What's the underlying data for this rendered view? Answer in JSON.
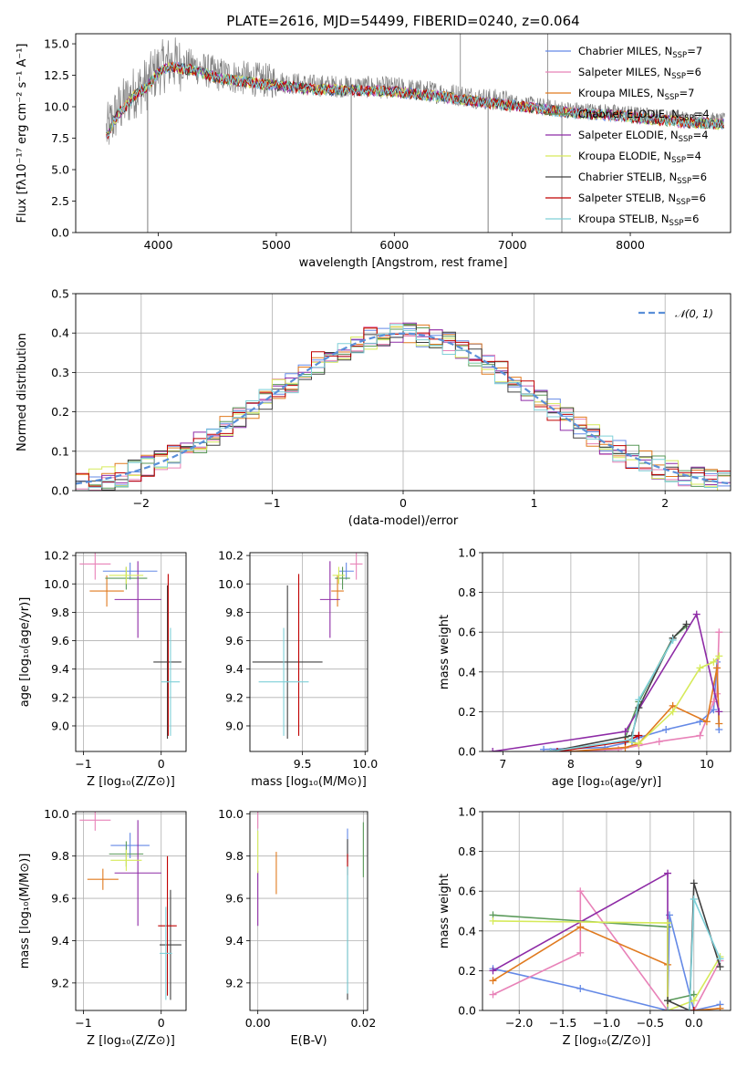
{
  "colors": {
    "Chabrier MILES": "#6489e6",
    "Salpeter MILES": "#e882b8",
    "Kroupa MILES": "#e07a1f",
    "Chabrier ELODIE": "#5a9a5a",
    "Salpeter ELODIE": "#8e2ba6",
    "Kroupa ELODIE": "#d6ea5a",
    "Chabrier STELIB": "#404040",
    "Salpeter STELIB": "#c00000",
    "Kroupa STELIB": "#7fd0d8",
    "observed": "#808080",
    "gauss": "#5a8fd8",
    "grid": "#b0b0b0"
  },
  "chart_data": [
    {
      "id": "spectrum",
      "type": "line",
      "title": "PLATE=2616, MJD=54499, FIBERID=0240, z=0.064",
      "xlabel": "wavelength [Angstrom, rest frame]",
      "ylabel": "Flux [fλ10⁻¹⁷ erg cm⁻² s⁻¹ A⁻¹]",
      "xlim": [
        3300,
        8850
      ],
      "ylim": [
        0,
        15.8
      ],
      "xticks": [
        4000,
        5000,
        6000,
        7000,
        8000
      ],
      "yticks": [
        0.0,
        2.5,
        5.0,
        7.5,
        10.0,
        12.5,
        15.0
      ],
      "legend_position": "top-right",
      "legend": [
        {
          "name": "Chabrier MILES",
          "sub": "SSP",
          "n": "=7"
        },
        {
          "name": "Salpeter MILES",
          "sub": "SSP",
          "n": "=6"
        },
        {
          "name": "Kroupa MILES",
          "sub": "SSP",
          "n": "=7"
        },
        {
          "name": "Chabrier ELODIE",
          "sub": "SSP",
          "n": "=4"
        },
        {
          "name": "Salpeter ELODIE",
          "sub": "SSP",
          "n": "=4"
        },
        {
          "name": "Kroupa ELODIE",
          "sub": "SSP",
          "n": "=4"
        },
        {
          "name": "Chabrier STELIB",
          "sub": "SSP",
          "n": "=6"
        },
        {
          "name": "Salpeter STELIB",
          "sub": "SSP",
          "n": "=6"
        },
        {
          "name": "Kroupa STELIB",
          "sub": "SSP",
          "n": "=6"
        }
      ],
      "envelope": {
        "x": [
          3560,
          3650,
          3800,
          3900,
          4000,
          4100,
          4300,
          4500,
          4700,
          5000,
          5300,
          5600,
          6000,
          6400,
          6800,
          7100,
          7400,
          7700,
          8000,
          8400,
          8800
        ],
        "y": [
          8.0,
          9.6,
          11.2,
          11.8,
          13.0,
          13.5,
          13.2,
          12.6,
          12.3,
          12.0,
          11.7,
          11.6,
          11.5,
          11.1,
          10.6,
          10.3,
          9.9,
          9.7,
          9.5,
          9.1,
          8.9
        ]
      },
      "absorption_dips": [
        {
          "x": 3910,
          "y": 0.0
        },
        {
          "x": 5635,
          "y": 0.0
        },
        {
          "x": 6795,
          "y": 0.0
        },
        {
          "x": 7420,
          "y": 0.0
        }
      ],
      "spikes": [
        {
          "x": 6560,
          "y": 15.8
        },
        {
          "x": 7300,
          "y": 15.8
        }
      ]
    },
    {
      "id": "residuals",
      "type": "bar",
      "xlabel": "(data-model)/error",
      "ylabel": "Normed distribution",
      "xlim": [
        -2.5,
        2.5
      ],
      "ylim": [
        0,
        0.5
      ],
      "xticks": [
        -2,
        -1,
        0,
        1,
        2
      ],
      "yticks": [
        0.0,
        0.1,
        0.2,
        0.3,
        0.4,
        0.5
      ],
      "grid": true,
      "legend_position": "top-right",
      "legend": [
        {
          "name": "𝒩(0, 1)"
        }
      ],
      "bin_width": 0.1,
      "bin_start": -2.5
    },
    {
      "id": "age-vs-Z",
      "type": "scatter",
      "xlabel": "Z [log₁₀(Z/Z⊙)]",
      "ylabel": "age  [log₁₀(age/yr)]",
      "xlim": [
        -1.1,
        0.32
      ],
      "ylim": [
        8.82,
        10.22
      ],
      "xticks": [
        -1,
        0
      ],
      "yticks": [
        9.0,
        9.2,
        9.4,
        9.6,
        9.8,
        10.0,
        10.2
      ],
      "grid": true,
      "points": [
        {
          "m": "Chabrier MILES",
          "x": -0.4,
          "y": 10.09,
          "xerr": 0.35,
          "yerr": 0.06
        },
        {
          "m": "Salpeter MILES",
          "x": -0.85,
          "y": 10.14,
          "xerr": 0.2,
          "yerr": 0.11
        },
        {
          "m": "Kroupa MILES",
          "x": -0.7,
          "y": 9.95,
          "xerr": 0.22,
          "yerr": 0.11
        },
        {
          "m": "Chabrier ELODIE",
          "x": -0.45,
          "y": 10.04,
          "xerr": 0.27,
          "yerr": 0.08
        },
        {
          "m": "Salpeter ELODIE",
          "x": -0.3,
          "y": 9.89,
          "xerr": 0.3,
          "yerr": 0.27
        },
        {
          "m": "Kroupa ELODIE",
          "x": -0.45,
          "y": 10.06,
          "xerr": 0.22,
          "yerr": 0.06
        },
        {
          "m": "Chabrier STELIB",
          "x": 0.08,
          "y": 9.45,
          "xerr": 0.18,
          "yerr": 0.54
        },
        {
          "m": "Salpeter STELIB",
          "x": 0.09,
          "y": 9.5,
          "xerr": 0.0,
          "yerr": 0.57
        },
        {
          "m": "Kroupa STELIB",
          "x": 0.12,
          "y": 9.31,
          "xerr": 0.12,
          "yerr": 0.38
        }
      ]
    },
    {
      "id": "age-vs-mass",
      "type": "scatter",
      "xlabel": "mass [log₁₀(M/M⊙)]",
      "ylabel": "",
      "xlim": [
        9.08,
        10.02
      ],
      "ylim": [
        8.82,
        10.22
      ],
      "xticks": [
        9.5,
        10.0
      ],
      "yticks": [
        9.0,
        9.2,
        9.4,
        9.6,
        9.8,
        10.0,
        10.2
      ],
      "grid": true,
      "points": [
        {
          "m": "Chabrier MILES",
          "x": 9.85,
          "y": 10.09,
          "xerr": 0.06,
          "yerr": 0.06
        },
        {
          "m": "Salpeter MILES",
          "x": 9.93,
          "y": 10.14,
          "xerr": 0.05,
          "yerr": 0.11
        },
        {
          "m": "Kroupa MILES",
          "x": 9.78,
          "y": 9.95,
          "xerr": 0.05,
          "yerr": 0.11
        },
        {
          "m": "Chabrier ELODIE",
          "x": 9.82,
          "y": 10.04,
          "xerr": 0.06,
          "yerr": 0.08
        },
        {
          "m": "Salpeter ELODIE",
          "x": 9.72,
          "y": 9.89,
          "xerr": 0.08,
          "yerr": 0.27
        },
        {
          "m": "Kroupa ELODIE",
          "x": 9.79,
          "y": 10.06,
          "xerr": 0.05,
          "yerr": 0.06
        },
        {
          "m": "Chabrier STELIB",
          "x": 9.38,
          "y": 9.45,
          "xerr": 0.28,
          "yerr": 0.54
        },
        {
          "m": "Salpeter STELIB",
          "x": 9.47,
          "y": 9.5,
          "xerr": 0.0,
          "yerr": 0.57
        },
        {
          "m": "Kroupa STELIB",
          "x": 9.35,
          "y": 9.31,
          "xerr": 0.2,
          "yerr": 0.38
        }
      ]
    },
    {
      "id": "weight-vs-age",
      "type": "line",
      "xlabel": "age  [log₁₀(age/yr)]",
      "ylabel": "mass weight",
      "xlim": [
        6.7,
        10.35
      ],
      "ylim": [
        0,
        1.0
      ],
      "xticks": [
        7,
        8,
        9,
        10
      ],
      "yticks": [
        0.0,
        0.2,
        0.4,
        0.6,
        0.8,
        1.0
      ],
      "grid": true,
      "series": [
        {
          "m": "Chabrier MILES",
          "x": [
            7.6,
            8.5,
            8.9,
            9.0,
            9.4,
            9.9,
            10.1,
            10.15,
            10.18
          ],
          "y": [
            0.01,
            0.02,
            0.05,
            0.07,
            0.11,
            0.15,
            0.21,
            0.45,
            0.11
          ]
        },
        {
          "m": "Salpeter MILES",
          "x": [
            7.9,
            8.7,
            9.0,
            9.3,
            9.9,
            10.1,
            10.15,
            10.18
          ],
          "y": [
            0.0,
            0.01,
            0.03,
            0.05,
            0.08,
            0.25,
            0.29,
            0.6
          ]
        },
        {
          "m": "Kroupa MILES",
          "x": [
            8.0,
            8.8,
            9.0,
            9.5,
            10.0,
            10.15,
            10.18
          ],
          "y": [
            0.0,
            0.02,
            0.04,
            0.23,
            0.15,
            0.42,
            0.14
          ]
        },
        {
          "m": "Chabrier ELODIE",
          "x": [
            8.8,
            9.0,
            9.5,
            9.7
          ],
          "y": [
            0.07,
            0.25,
            0.57,
            0.63
          ]
        },
        {
          "m": "Salpeter ELODIE",
          "x": [
            6.85,
            8.8,
            9.85,
            10.18
          ],
          "y": [
            0.0,
            0.1,
            0.69,
            0.2
          ]
        },
        {
          "m": "Kroupa ELODIE",
          "x": [
            8.8,
            9.0,
            9.5,
            9.9,
            10.1,
            10.18
          ],
          "y": [
            0.05,
            0.04,
            0.2,
            0.42,
            0.45,
            0.48
          ]
        },
        {
          "m": "Chabrier STELIB",
          "x": [
            7.7,
            8.9,
            9.0,
            9.5,
            9.7
          ],
          "y": [
            0.0,
            0.08,
            0.22,
            0.57,
            0.64
          ]
        },
        {
          "m": "Salpeter STELIB",
          "x": [
            7.8,
            8.8,
            9.0
          ],
          "y": [
            0.0,
            0.05,
            0.08
          ]
        },
        {
          "m": "Kroupa STELIB",
          "x": [
            7.7,
            8.9,
            9.0,
            9.5
          ],
          "y": [
            0.0,
            0.06,
            0.26,
            0.56
          ]
        }
      ]
    },
    {
      "id": "mass-vs-Z",
      "type": "scatter",
      "xlabel": "Z [log₁₀(Z/Z⊙)]",
      "ylabel": "mass [log₁₀(M/M⊙)]",
      "xlim": [
        -1.1,
        0.32
      ],
      "ylim": [
        9.07,
        10.01
      ],
      "xticks": [
        -1,
        0
      ],
      "yticks": [
        9.2,
        9.4,
        9.6,
        9.8,
        10.0
      ],
      "grid": true,
      "points": [
        {
          "m": "Chabrier MILES",
          "x": -0.4,
          "y": 9.85,
          "xerr": 0.25,
          "yerr": 0.06
        },
        {
          "m": "Salpeter MILES",
          "x": -0.85,
          "y": 9.97,
          "xerr": 0.2,
          "yerr": 0.05
        },
        {
          "m": "Kroupa MILES",
          "x": -0.75,
          "y": 9.69,
          "xerr": 0.2,
          "yerr": 0.05
        },
        {
          "m": "Chabrier ELODIE",
          "x": -0.45,
          "y": 9.81,
          "xerr": 0.22,
          "yerr": 0.06
        },
        {
          "m": "Salpeter ELODIE",
          "x": -0.3,
          "y": 9.72,
          "xerr": 0.3,
          "yerr": 0.25
        },
        {
          "m": "Kroupa ELODIE",
          "x": -0.45,
          "y": 9.78,
          "xerr": 0.2,
          "yerr": 0.05
        },
        {
          "m": "Chabrier STELIB",
          "x": 0.12,
          "y": 9.38,
          "xerr": 0.14,
          "yerr": 0.26
        },
        {
          "m": "Salpeter STELIB",
          "x": 0.08,
          "y": 9.47,
          "xerr": 0.12,
          "yerr": 0.33
        },
        {
          "m": "Kroupa STELIB",
          "x": 0.06,
          "y": 9.34,
          "xerr": 0.08,
          "yerr": 0.22
        }
      ]
    },
    {
      "id": "mass-vs-EBV",
      "type": "scatter",
      "xlabel": "E(B-V)",
      "ylabel": "",
      "xlim": [
        -0.0015,
        0.0208
      ],
      "ylim": [
        9.07,
        10.01
      ],
      "xticks": [
        0.0,
        0.02
      ],
      "yticks": [
        9.2,
        9.4,
        9.6,
        9.8,
        10.0
      ],
      "grid": true,
      "points": [
        {
          "m": "Chabrier MILES",
          "x": 0.017,
          "y": 9.85,
          "xerr": 0.0,
          "yerr": 0.08
        },
        {
          "m": "Salpeter MILES",
          "x": 0.0,
          "y": 9.97,
          "xerr": 0.0,
          "yerr": 0.04
        },
        {
          "m": "Kroupa MILES",
          "x": 0.0035,
          "y": 9.72,
          "xerr": 0.0,
          "yerr": 0.1
        },
        {
          "m": "Chabrier ELODIE",
          "x": 0.02,
          "y": 9.83,
          "xerr": 0.0,
          "yerr": 0.13
        },
        {
          "m": "Salpeter ELODIE",
          "x": 0.0,
          "y": 9.6,
          "xerr": 0.0,
          "yerr": 0.13
        },
        {
          "m": "Kroupa ELODIE",
          "x": 0.0,
          "y": 9.82,
          "xerr": 0.0,
          "yerr": 0.1
        },
        {
          "m": "Chabrier STELIB",
          "x": 0.017,
          "y": 9.5,
          "xerr": 0.0,
          "yerr": 0.38
        },
        {
          "m": "Salpeter STELIB",
          "x": 0.017,
          "y": 9.76,
          "xerr": 0.0,
          "yerr": 0.05
        },
        {
          "m": "Kroupa STELIB",
          "x": 0.017,
          "y": 9.45,
          "xerr": 0.0,
          "yerr": 0.3
        }
      ]
    },
    {
      "id": "weight-vs-Z",
      "type": "line",
      "xlabel": "Z [log₁₀(Z/Z⊙)]",
      "ylabel": "mass weight",
      "xlim": [
        -2.42,
        0.42
      ],
      "ylim": [
        0,
        1.0
      ],
      "xticks": [
        -2.0,
        -1.5,
        -1.0,
        -0.5,
        0.0
      ],
      "yticks": [
        0.0,
        0.2,
        0.4,
        0.6,
        0.8,
        1.0
      ],
      "grid": true,
      "series": [
        {
          "m": "Chabrier MILES",
          "x": [
            -2.3,
            -1.3,
            -0.3,
            -0.28,
            0.0,
            0.3
          ],
          "y": [
            0.21,
            0.11,
            0.0,
            0.48,
            0.0,
            0.03
          ]
        },
        {
          "m": "Salpeter MILES",
          "x": [
            -2.3,
            -1.3,
            -1.3,
            -0.3,
            0.0,
            0.3
          ],
          "y": [
            0.08,
            0.29,
            0.6,
            0.0,
            0.0,
            0.25
          ]
        },
        {
          "m": "Kroupa MILES",
          "x": [
            -2.3,
            -1.3,
            -0.3,
            -0.3,
            0.0,
            0.3
          ],
          "y": [
            0.15,
            0.42,
            0.23,
            0.0,
            0.0,
            0.01
          ]
        },
        {
          "m": "Chabrier ELODIE",
          "x": [
            -2.3,
            -0.3,
            -0.3,
            0.0
          ],
          "y": [
            0.48,
            0.42,
            0.05,
            0.08
          ]
        },
        {
          "m": "Salpeter ELODIE",
          "x": [
            -2.3,
            -0.3,
            -0.3,
            -0.05
          ],
          "y": [
            0.2,
            0.69,
            0.0,
            0.0
          ]
        },
        {
          "m": "Kroupa ELODIE",
          "x": [
            -2.3,
            -0.3,
            -0.3,
            0.0,
            0.3
          ],
          "y": [
            0.45,
            0.44,
            0.0,
            0.05,
            0.27
          ]
        },
        {
          "m": "Chabrier STELIB",
          "x": [
            -0.3,
            -0.05,
            0.0,
            0.3
          ],
          "y": [
            0.05,
            0.0,
            0.64,
            0.22
          ]
        },
        {
          "m": "Salpeter STELIB",
          "x": [
            -0.3,
            -0.05,
            0.0
          ],
          "y": [
            0.0,
            0.0,
            0.0
          ]
        },
        {
          "m": "Kroupa STELIB",
          "x": [
            -0.3,
            -0.05,
            0.0,
            0.3
          ],
          "y": [
            0.0,
            0.0,
            0.56,
            0.26
          ]
        }
      ]
    }
  ]
}
